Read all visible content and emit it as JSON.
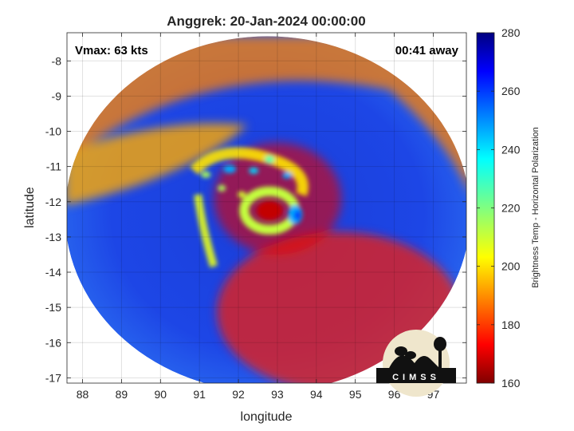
{
  "chart_data": {
    "type": "heatmap",
    "title": "Anggrek: 20-Jan-2024 00:00:00",
    "annotations": {
      "vmax": "Vmax: 63 kts",
      "time_away": "00:41 away"
    },
    "xlabel": "longitude",
    "ylabel": "latitude",
    "xlim": [
      87.6,
      97.85
    ],
    "ylim": [
      -17.15,
      -7.2
    ],
    "xticks": [
      88,
      89,
      90,
      91,
      92,
      93,
      94,
      95,
      96,
      97
    ],
    "yticks": [
      -8,
      -9,
      -10,
      -11,
      -12,
      -13,
      -14,
      -15,
      -16,
      -17
    ],
    "grid": true,
    "storm_center": {
      "lon": 92.8,
      "lat": -12.25
    },
    "scan_disk": {
      "center_lon": 92.75,
      "center_lat": -12.35,
      "radius_lon": 5.2,
      "radius_lat": 5.05
    },
    "colorbar": {
      "label": "Brightness Temp - Horizontal Polarization",
      "range": [
        160,
        280
      ],
      "ticks": [
        160,
        180,
        200,
        220,
        240,
        260,
        280
      ],
      "colormap": "jet"
    },
    "logo": {
      "text": "CIMSS"
    }
  }
}
